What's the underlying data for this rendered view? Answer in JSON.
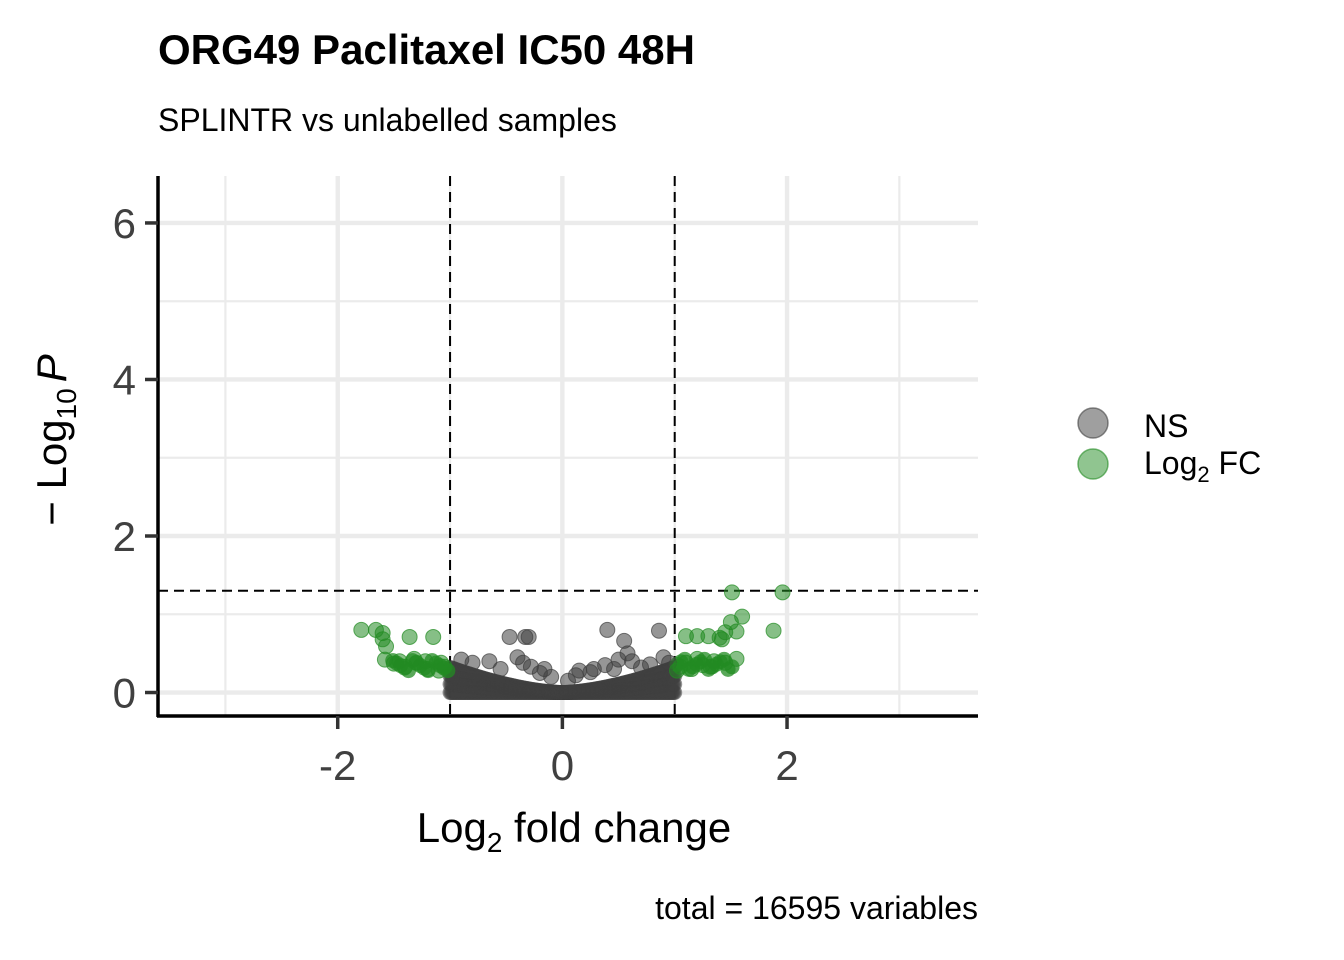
{
  "chart_data": {
    "type": "scatter",
    "title": "ORG49 Paclitaxel IC50 48H",
    "subtitle": "SPLINTR vs unlabelled samples",
    "caption": "total = 16595 variables",
    "xlabel": {
      "base": "Log",
      "sub": "2",
      "rest": " fold change"
    },
    "ylabel": {
      "prefix": "− Log",
      "sub": "10",
      "italic": "P"
    },
    "xlim": [
      -3.6,
      3.7
    ],
    "ylim": [
      -0.3,
      6.6
    ],
    "xticks": [
      -2,
      0,
      2
    ],
    "xtick_labels": [
      "-2",
      "0",
      "2"
    ],
    "yticks": [
      0,
      2,
      4,
      6
    ],
    "ytick_labels": [
      "0",
      "2",
      "4",
      "6"
    ],
    "x_minor_grid": [
      -3,
      -1,
      1,
      3
    ],
    "y_minor_grid": [
      1,
      3,
      5
    ],
    "fc_cutoff": 1,
    "p_cutoff_neglog10": 1.3,
    "legend_position": "right",
    "series": [
      {
        "name": "NS",
        "color": "#404040",
        "points": [
          [
            -0.47,
            0.71
          ],
          [
            -0.33,
            0.71
          ],
          [
            -0.3,
            0.71
          ],
          [
            0.4,
            0.8
          ],
          [
            0.55,
            0.66
          ],
          [
            0.58,
            0.5
          ],
          [
            0.86,
            0.79
          ],
          [
            -0.4,
            0.45
          ],
          [
            -0.35,
            0.38
          ],
          [
            -0.16,
            0.3
          ],
          [
            0.12,
            0.22
          ],
          [
            0.28,
            0.3
          ],
          [
            0.62,
            0.4
          ],
          [
            0.7,
            0.32
          ],
          [
            -0.8,
            0.38
          ],
          [
            -0.65,
            0.4
          ],
          [
            0.5,
            0.42
          ],
          [
            0.38,
            0.35
          ],
          [
            -0.2,
            0.25
          ],
          [
            0.15,
            0.28
          ],
          [
            0.9,
            0.45
          ],
          [
            0.95,
            0.38
          ],
          [
            -0.9,
            0.42
          ],
          [
            -0.55,
            0.3
          ],
          [
            0.46,
            0.3
          ],
          [
            -0.1,
            0.2
          ],
          [
            0.05,
            0.15
          ],
          [
            0.25,
            0.26
          ],
          [
            -0.28,
            0.33
          ],
          [
            0.78,
            0.36
          ]
        ]
      },
      {
        "name": "Log2 FC",
        "color": "#228b22",
        "points": [
          [
            -1.79,
            0.8
          ],
          [
            -1.66,
            0.8
          ],
          [
            -1.6,
            0.76
          ],
          [
            -1.6,
            0.68
          ],
          [
            -1.36,
            0.71
          ],
          [
            -1.15,
            0.71
          ],
          [
            -1.57,
            0.59
          ],
          [
            -1.58,
            0.42
          ],
          [
            -1.45,
            0.4
          ],
          [
            -1.32,
            0.43
          ],
          [
            -1.22,
            0.4
          ],
          [
            -1.08,
            0.38
          ],
          [
            -1.4,
            0.33
          ],
          [
            -1.2,
            0.3
          ],
          [
            -1.1,
            0.28
          ],
          [
            -1.5,
            0.37
          ],
          [
            -1.3,
            0.38
          ],
          [
            -1.05,
            0.33
          ],
          [
            1.51,
            1.28
          ],
          [
            1.96,
            1.28
          ],
          [
            1.6,
            0.97
          ],
          [
            1.5,
            0.9
          ],
          [
            1.45,
            0.77
          ],
          [
            1.55,
            0.78
          ],
          [
            1.88,
            0.79
          ],
          [
            1.1,
            0.72
          ],
          [
            1.2,
            0.72
          ],
          [
            1.4,
            0.7
          ],
          [
            1.3,
            0.72
          ],
          [
            1.42,
            0.68
          ],
          [
            1.55,
            0.43
          ],
          [
            1.35,
            0.4
          ],
          [
            1.25,
            0.35
          ],
          [
            1.15,
            0.3
          ],
          [
            1.05,
            0.33
          ],
          [
            1.45,
            0.38
          ],
          [
            1.2,
            0.43
          ],
          [
            1.1,
            0.38
          ],
          [
            1.32,
            0.33
          ],
          [
            1.02,
            0.28
          ]
        ]
      }
    ]
  }
}
